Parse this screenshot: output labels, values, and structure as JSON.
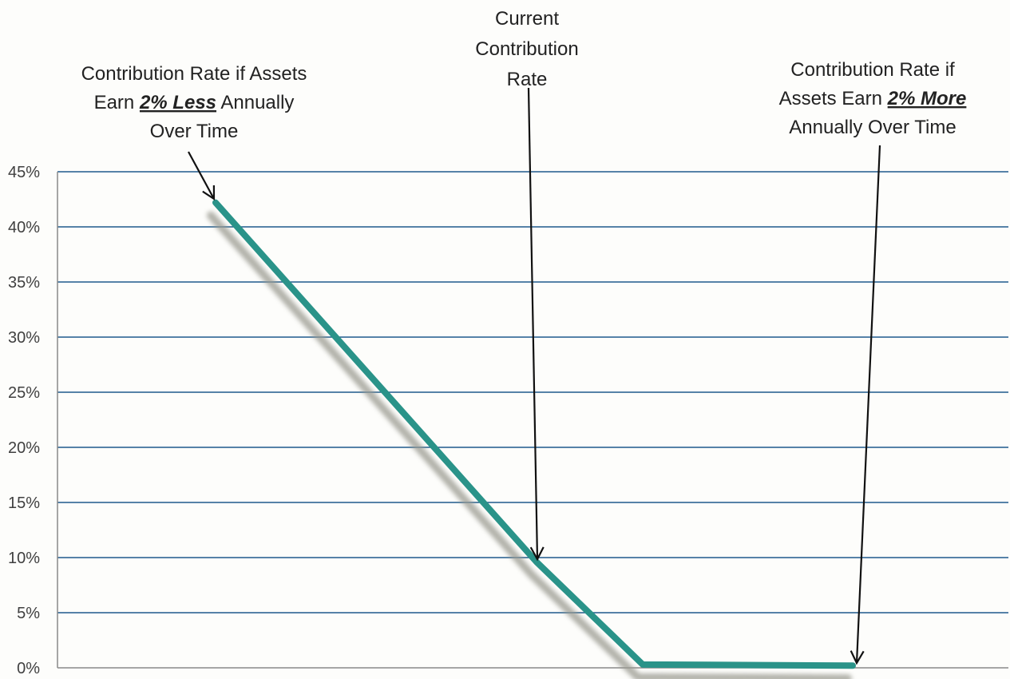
{
  "chart_data": {
    "type": "line",
    "title": "",
    "xlabel": "",
    "ylabel": "",
    "ylim": [
      0,
      45
    ],
    "yticks": [
      "0%",
      "5%",
      "10%",
      "15%",
      "20%",
      "25%",
      "30%",
      "35%",
      "40%",
      "45%"
    ],
    "grid": true,
    "series": [
      {
        "points": [
          {
            "x": -2,
            "y": 42.2
          },
          {
            "x": 0,
            "y": 9.6
          },
          {
            "x": 1,
            "y": 0.3
          },
          {
            "x": 2,
            "y": 0.2
          }
        ]
      }
    ],
    "colors": {
      "line": "#2a9389",
      "shadow": "#9a9a90",
      "grid": "#1f5a8c",
      "axis": "#8a8a8a"
    },
    "annotations": [
      {
        "target_x": -2,
        "lines": [
          [
            {
              "text": "Contribution Rate if Assets"
            }
          ],
          [
            {
              "text": "Earn "
            },
            {
              "text": "2% Less",
              "emph": true
            },
            {
              "text": " Annually"
            }
          ],
          [
            {
              "text": "Over Time"
            }
          ]
        ]
      },
      {
        "target_x": 0,
        "lines": [
          [
            {
              "text": "Current"
            }
          ],
          [
            {
              "text": "Contribution"
            }
          ],
          [
            {
              "text": "Rate"
            }
          ]
        ]
      },
      {
        "target_x": 2,
        "lines": [
          [
            {
              "text": "Contribution Rate if"
            }
          ],
          [
            {
              "text": "Assets Earn "
            },
            {
              "text": "2% More",
              "emph": true
            }
          ],
          [
            {
              "text": "Annually Over Time"
            }
          ]
        ]
      }
    ]
  }
}
